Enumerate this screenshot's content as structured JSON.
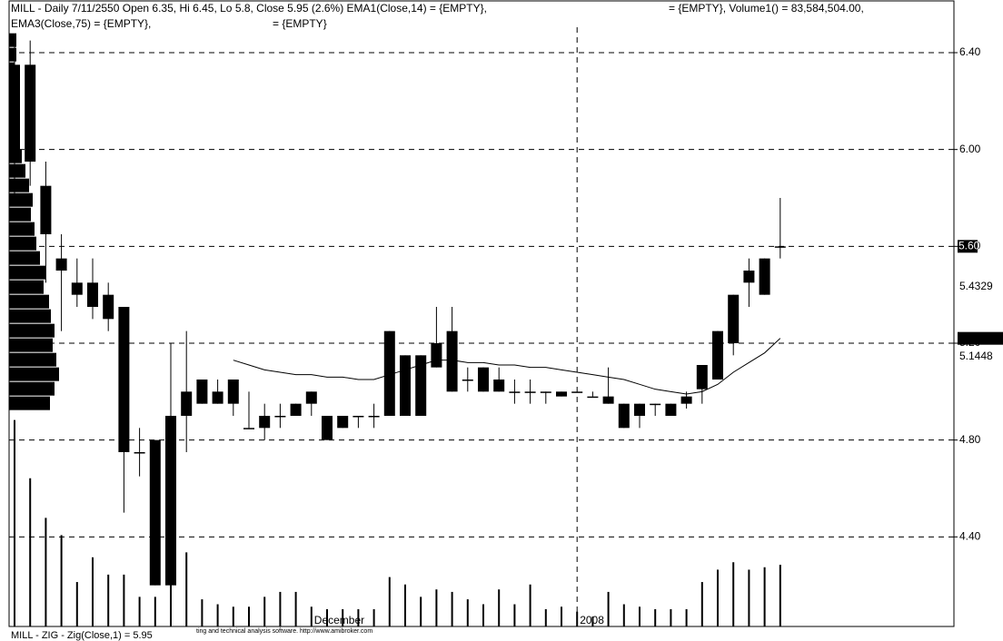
{
  "chart_data": {
    "type": "candlestick",
    "title_lines": [
      [
        "MILL - Daily 7/11/2550 Open 6.35, Hi 6.45, Lo 5.8, Close 5.95 (2.6%) EMA1(Close,14) = {EMPTY},",
        "= {EMPTY}, Volume1() = 83,584,504.00,"
      ],
      [
        "EMA3(Close,75) = {EMPTY},",
        "= {EMPTY}"
      ]
    ],
    "footer": "MILL - ZIG - Zig(Close,1) = 5.95",
    "footer_note": "ting and technical analysis software. http://www.amibroker.com",
    "categories": [
      null,
      null,
      null,
      null,
      null,
      null,
      null,
      null,
      null,
      null,
      null,
      null,
      null,
      null,
      null,
      null,
      null,
      null,
      null,
      "December",
      null,
      null,
      null,
      null,
      null,
      null,
      null,
      null,
      null,
      null,
      null,
      null,
      null,
      null,
      null,
      null,
      "2008",
      null,
      null,
      null,
      null,
      null,
      null,
      null,
      null,
      null,
      null,
      null,
      null,
      null
    ],
    "open": [
      6.35,
      6.35,
      5.85,
      5.55,
      5.45,
      5.45,
      5.4,
      5.35,
      4.75,
      4.8,
      4.2,
      4.9,
      4.95,
      4.95,
      4.95,
      4.85,
      4.85,
      4.9,
      4.9,
      4.95,
      4.8,
      4.85,
      4.9,
      4.9,
      4.9,
      5.15,
      4.9,
      5.2,
      5.25,
      5.05,
      5.1,
      5.05,
      5.0,
      5.0,
      5.0,
      5.0,
      5.0,
      4.98,
      4.95,
      4.95,
      4.9,
      4.95,
      4.95,
      4.95,
      5.11,
      5.05,
      5.2,
      5.45,
      5.55,
      5.6
    ],
    "high": [
      6.45,
      6.45,
      5.95,
      5.65,
      5.55,
      5.55,
      5.45,
      5.35,
      4.85,
      4.8,
      5.2,
      5.25,
      5.05,
      5.05,
      5.05,
      5.0,
      4.95,
      4.95,
      4.95,
      5.0,
      4.9,
      4.9,
      4.9,
      4.95,
      5.25,
      5.15,
      5.15,
      5.35,
      5.35,
      5.1,
      5.1,
      5.1,
      5.05,
      5.05,
      5.0,
      5.0,
      5.0,
      5.0,
      5.1,
      4.95,
      4.95,
      4.95,
      4.95,
      5.0,
      5.11,
      5.25,
      5.4,
      5.55,
      5.55,
      5.8
    ],
    "low": [
      5.8,
      5.85,
      5.45,
      5.25,
      5.35,
      5.3,
      5.25,
      4.5,
      4.65,
      4.2,
      4.2,
      4.75,
      4.95,
      4.95,
      4.9,
      4.85,
      4.8,
      4.85,
      4.9,
      4.9,
      4.8,
      4.85,
      4.85,
      4.85,
      4.9,
      4.9,
      4.9,
      5.1,
      5.0,
      5.0,
      5.0,
      5.0,
      4.95,
      4.95,
      4.95,
      4.98,
      5.0,
      4.98,
      4.95,
      4.85,
      4.85,
      4.9,
      4.9,
      4.93,
      4.95,
      5.05,
      5.15,
      5.35,
      5.4,
      5.55
    ],
    "close": [
      5.95,
      5.95,
      5.65,
      5.5,
      5.4,
      5.35,
      5.3,
      4.75,
      4.75,
      4.2,
      4.9,
      5.0,
      5.05,
      5.0,
      5.05,
      4.85,
      4.9,
      4.9,
      4.95,
      5.0,
      4.9,
      4.9,
      4.9,
      4.9,
      5.25,
      4.9,
      5.15,
      5.1,
      5.0,
      5.05,
      5.0,
      5.0,
      5.0,
      5.0,
      5.0,
      4.98,
      5.0,
      4.98,
      4.98,
      4.85,
      4.95,
      4.95,
      4.9,
      4.98,
      5.01,
      5.25,
      5.4,
      5.5,
      5.4,
      5.6
    ],
    "color": "#000000",
    "volume": [
      83.6,
      60,
      44,
      37,
      18,
      28,
      21,
      21,
      12,
      12,
      17,
      30,
      11,
      9,
      8,
      8,
      12,
      14,
      14,
      8,
      7,
      7,
      7,
      7,
      20,
      17,
      12,
      15,
      14,
      11,
      9,
      15,
      9,
      17,
      7,
      8,
      6,
      4,
      14,
      9,
      8,
      7,
      7,
      7,
      18,
      23,
      26,
      23,
      24,
      25
    ],
    "vlim": [
      0,
      250
    ],
    "ema": [
      null,
      null,
      null,
      null,
      null,
      null,
      null,
      null,
      null,
      null,
      null,
      null,
      null,
      null,
      5.13,
      5.11,
      5.09,
      5.08,
      5.07,
      5.07,
      5.06,
      5.06,
      5.05,
      5.05,
      5.07,
      5.09,
      5.11,
      5.13,
      5.13,
      5.12,
      5.12,
      5.11,
      5.11,
      5.1,
      5.1,
      5.09,
      5.08,
      5.07,
      5.06,
      5.05,
      5.03,
      5.01,
      5.0,
      4.99,
      5.0,
      5.03,
      5.08,
      5.12,
      5.16,
      5.22
    ],
    "profile": {
      "prices": [
        6.45,
        6.39,
        6.33,
        6.27,
        6.21,
        6.15,
        6.09,
        6.03,
        5.97,
        5.91,
        5.85,
        5.79,
        5.73,
        5.67,
        5.61,
        5.55,
        5.49,
        5.43,
        5.37,
        5.31,
        5.25,
        5.19,
        5.13,
        5.07,
        5.01,
        4.95
      ],
      "values": [
        8,
        8,
        6,
        5,
        5,
        6,
        8,
        10,
        14,
        18,
        22,
        26,
        24,
        28,
        30,
        34,
        40,
        38,
        44,
        46,
        50,
        48,
        52,
        55,
        50,
        45
      ]
    },
    "ylim": [
      4.03,
      6.58
    ],
    "yticks": [
      {
        "value": 4.4,
        "label": "4.40"
      },
      {
        "value": 4.8,
        "label": "4.80"
      },
      {
        "value": 5.2,
        "label": "5.20"
      },
      {
        "value": 5.6,
        "label": "5.60"
      },
      {
        "value": 6.0,
        "label": "6.00"
      },
      {
        "value": 6.4,
        "label": "6.40"
      }
    ],
    "price_labels": [
      5.4329,
      5.1448
    ],
    "last_price": {
      "value": 5.6,
      "label": "5.60"
    },
    "grid": true
  }
}
